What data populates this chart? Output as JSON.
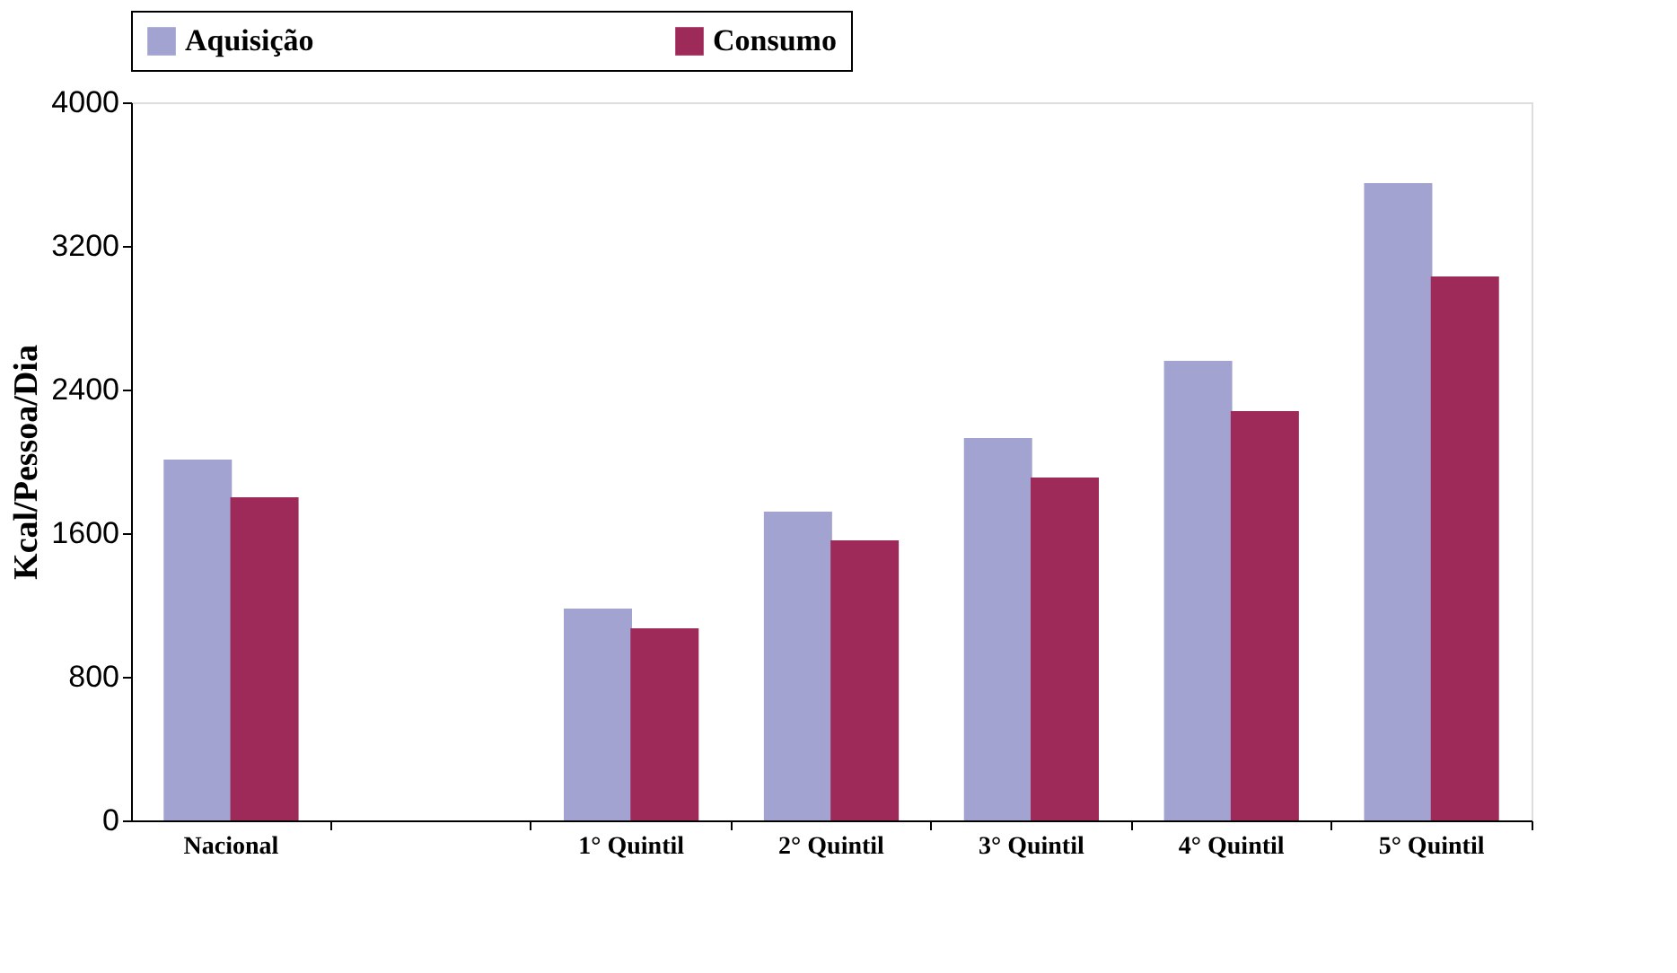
{
  "chart_data": {
    "type": "bar",
    "ylabel": "Kcal/Pessoa/Dia",
    "categories": [
      "Nacional",
      null,
      "1° Quintil",
      "2° Quintil",
      "3° Quintil",
      "4° Quintil",
      "5° Quintil"
    ],
    "series": [
      {
        "name": "Aquisição",
        "color": "#a3a3d1",
        "values": [
          2010,
          null,
          1180,
          1720,
          2130,
          2560,
          3550
        ]
      },
      {
        "name": "Consumo",
        "color": "#9e2a5a",
        "values": [
          1800,
          null,
          1070,
          1560,
          1910,
          2280,
          3030
        ]
      }
    ],
    "ylim": [
      0,
      4000
    ],
    "yticks": [
      0,
      800,
      1600,
      2400,
      3200,
      4000
    ],
    "grid": false,
    "legend": "top"
  }
}
